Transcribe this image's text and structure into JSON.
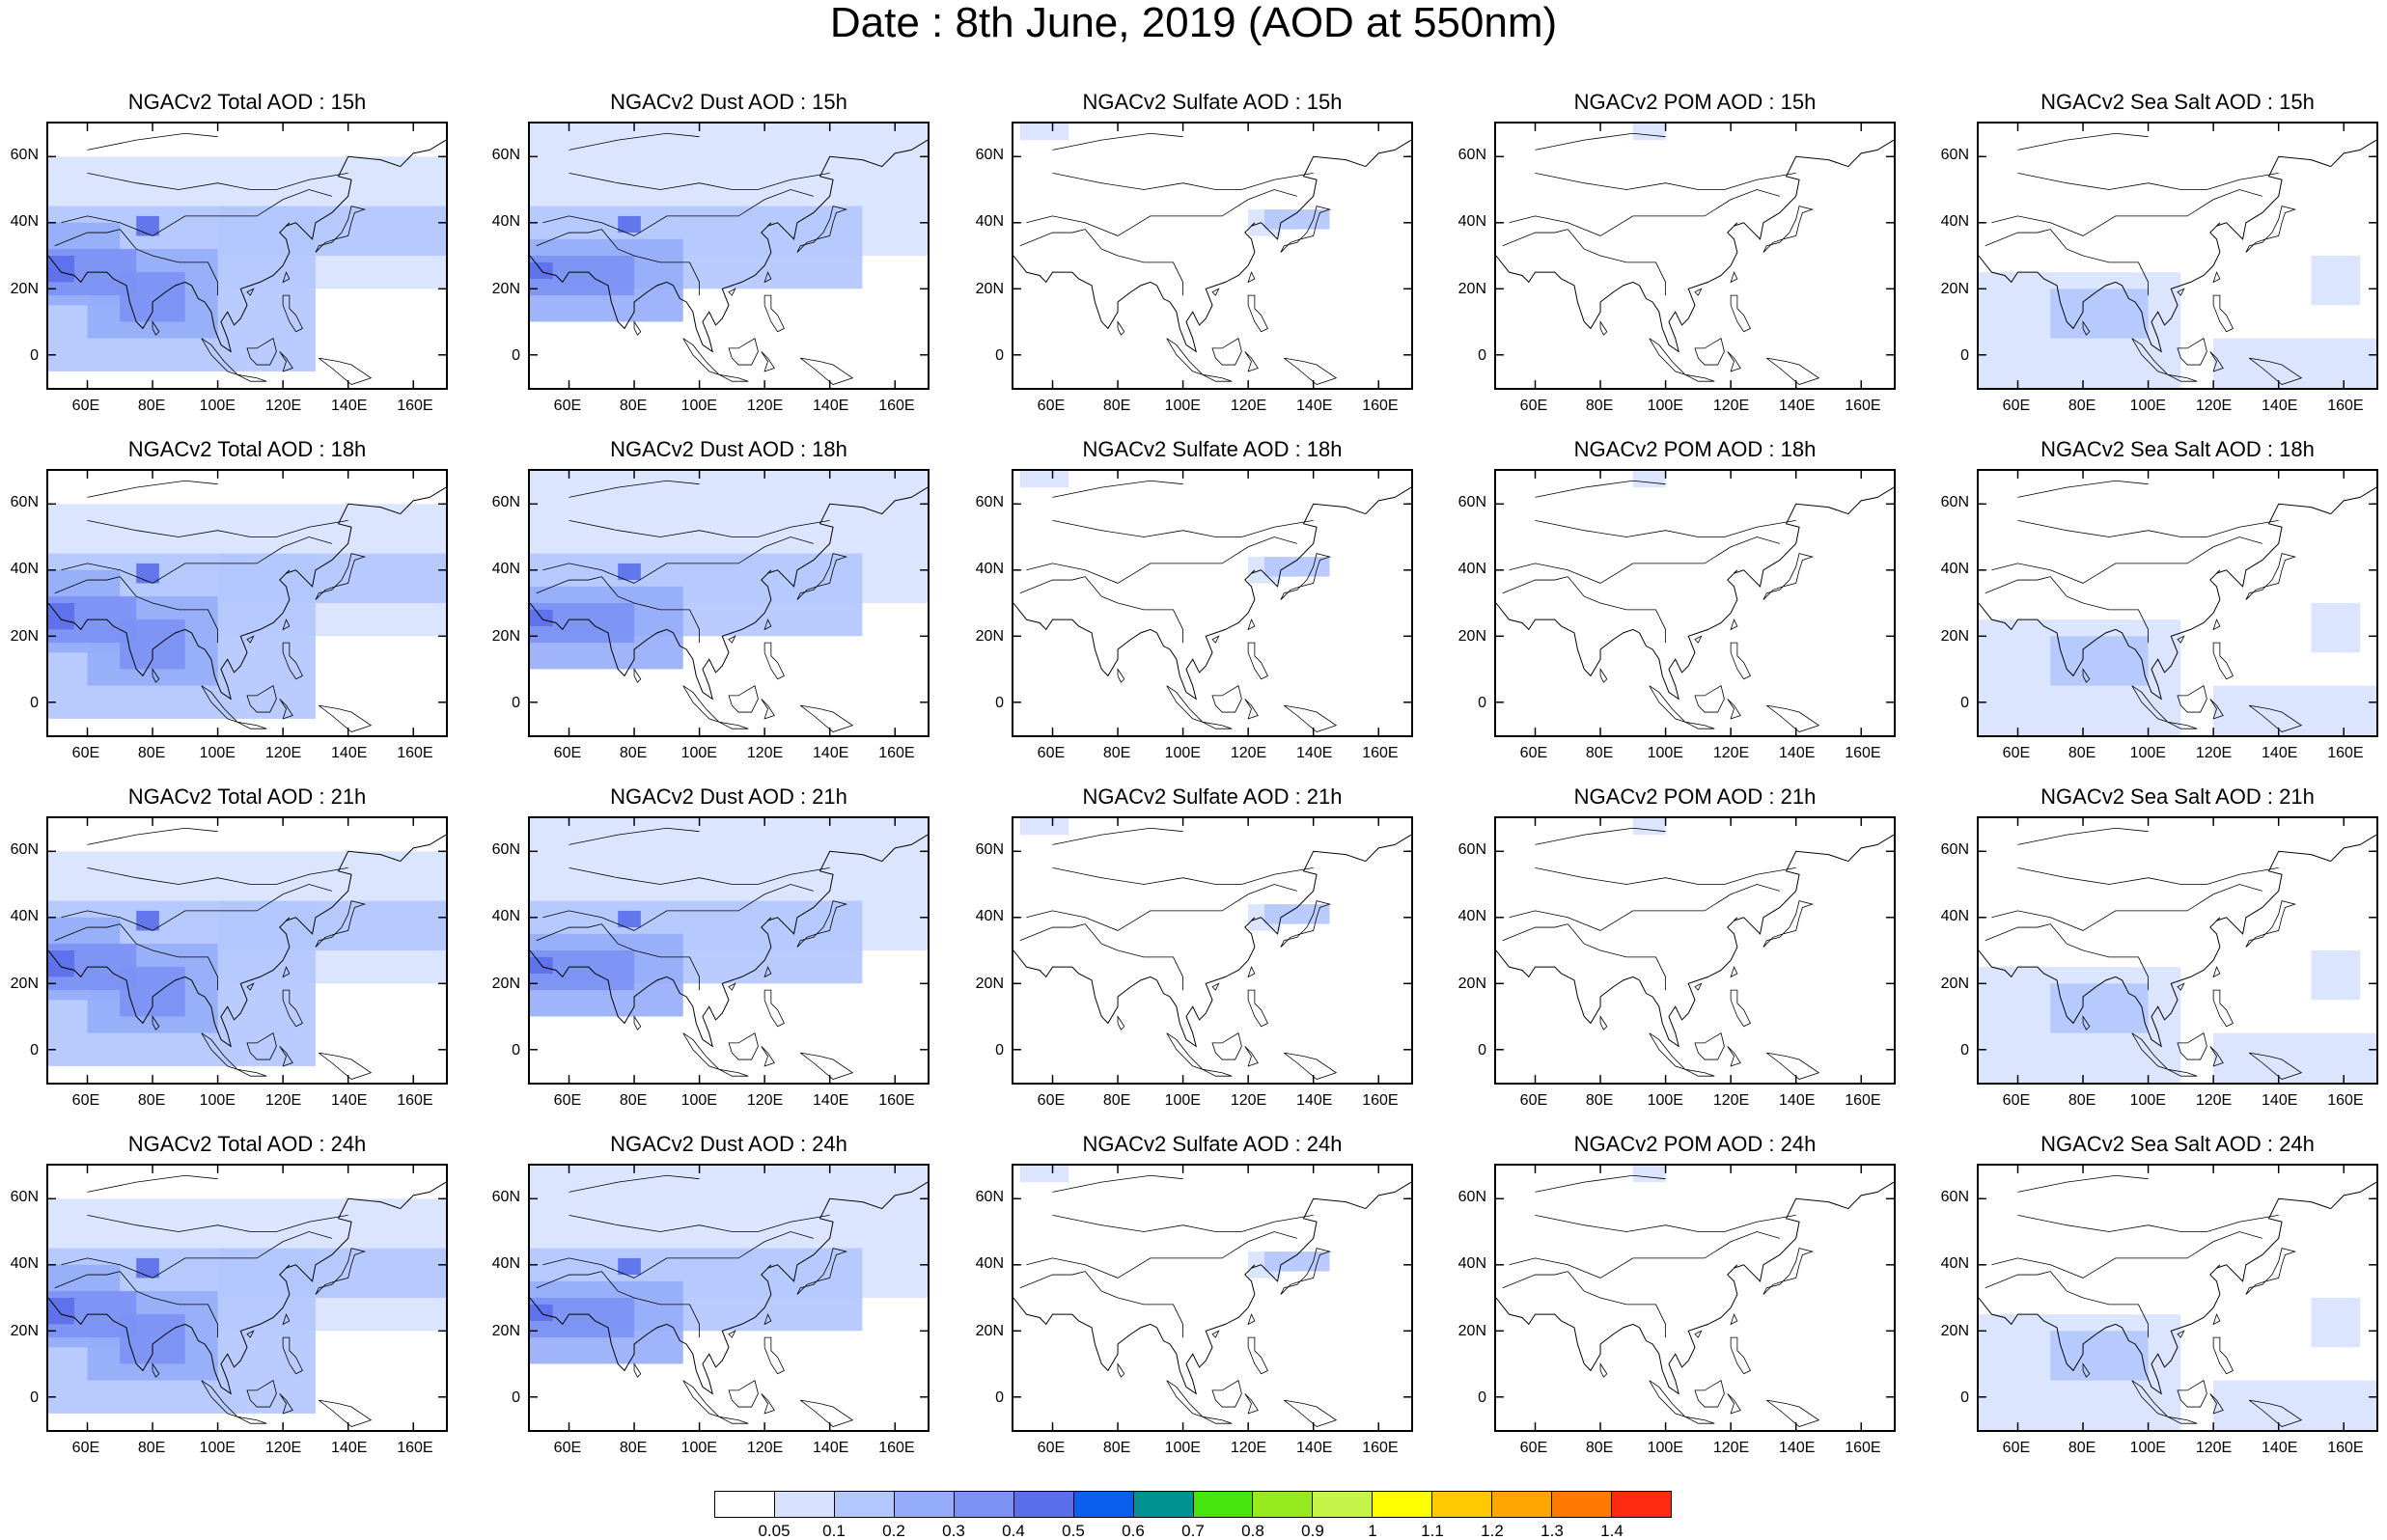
{
  "title": "Date : 8th June, 2019 (AOD at 550nm)",
  "panels": [
    [
      "NGACv2 Total AOD : 15h",
      "NGACv2 Dust AOD : 15h",
      "NGACv2 Sulfate AOD : 15h",
      "NGACv2 POM AOD : 15h",
      "NGACv2 Sea Salt AOD : 15h"
    ],
    [
      "NGACv2 Total AOD : 18h",
      "NGACv2 Dust AOD : 18h",
      "NGACv2 Sulfate AOD : 18h",
      "NGACv2 POM AOD : 18h",
      "NGACv2 Sea Salt AOD : 18h"
    ],
    [
      "NGACv2 Total AOD : 21h",
      "NGACv2 Dust AOD : 21h",
      "NGACv2 Sulfate AOD : 21h",
      "NGACv2 POM AOD : 21h",
      "NGACv2 Sea Salt AOD : 21h"
    ],
    [
      "NGACv2 Total AOD : 24h",
      "NGACv2 Dust AOD : 24h",
      "NGACv2 Sulfate AOD : 24h",
      "NGACv2 POM AOD : 24h",
      "NGACv2 Sea Salt  AOD : 24h"
    ]
  ],
  "lat_labels": [
    "60N",
    "40N",
    "20N",
    "0"
  ],
  "lat_values": [
    60,
    40,
    20,
    0
  ],
  "lon_labels": [
    "60E",
    "80E",
    "100E",
    "120E",
    "140E",
    "160E"
  ],
  "lon_values": [
    60,
    80,
    100,
    120,
    140,
    160
  ],
  "map_extent": {
    "lon": [
      48,
      170
    ],
    "lat": [
      -10,
      70
    ]
  },
  "colorbar": {
    "labels": [
      "0.05",
      "0.1",
      "0.2",
      "0.3",
      "0.4",
      "0.5",
      "0.6",
      "0.7",
      "0.8",
      "0.9",
      "1",
      "1.1",
      "1.2",
      "1.3",
      "1.4"
    ],
    "colors": [
      "#ffffff",
      "#d7e2ff",
      "#b3c7ff",
      "#95acfa",
      "#7b92f4",
      "#5a6eea",
      "#0a5ff0",
      "#009292",
      "#47e510",
      "#94ea1d",
      "#c5f34a",
      "#ffff00",
      "#ffc800",
      "#ffa500",
      "#ff7a00",
      "#ff2a10"
    ]
  }
}
